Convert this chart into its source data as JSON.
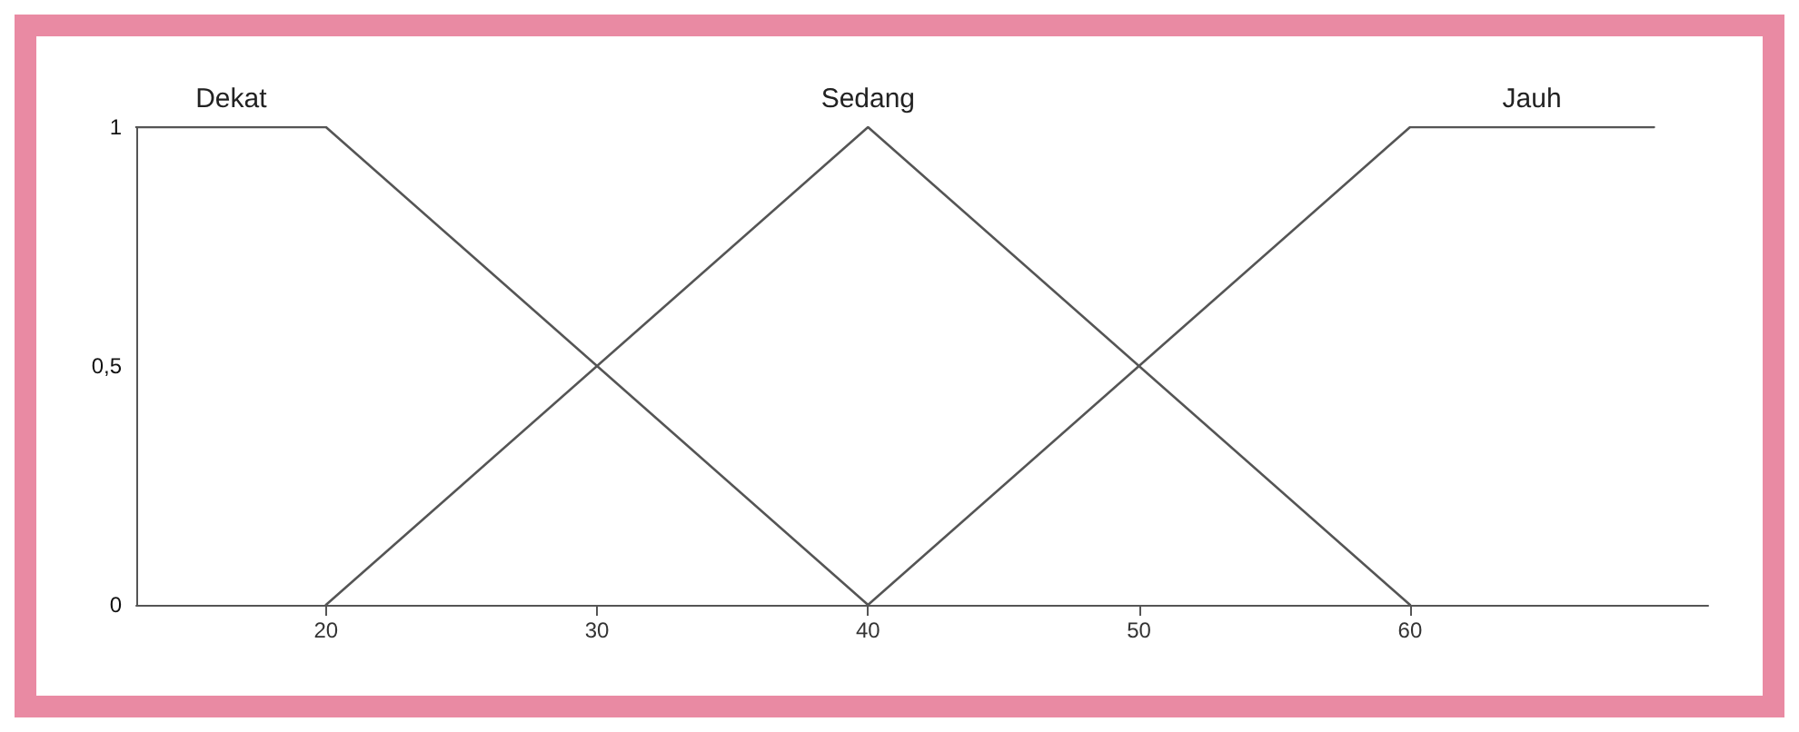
{
  "chart_data": {
    "type": "line",
    "xlim": [
      13,
      71
    ],
    "xticks": [
      20,
      30,
      40,
      50,
      60
    ],
    "ylim": [
      0,
      1
    ],
    "yticks": [
      0,
      {
        "value": 0.5,
        "label": "0,5"
      },
      1
    ],
    "grid": false,
    "marker": "none",
    "line_style": "solid",
    "series": [
      {
        "name": "Dekat",
        "color": "#555555",
        "x": [
          13,
          20,
          40
        ],
        "values": [
          1,
          1,
          0
        ]
      },
      {
        "name": "Sedang",
        "color": "#555555",
        "x": [
          20,
          40,
          60
        ],
        "values": [
          0,
          1,
          0
        ]
      },
      {
        "name": "Jauh",
        "color": "#555555",
        "x": [
          40,
          60,
          69
        ],
        "values": [
          0,
          1,
          1
        ]
      }
    ]
  }
}
